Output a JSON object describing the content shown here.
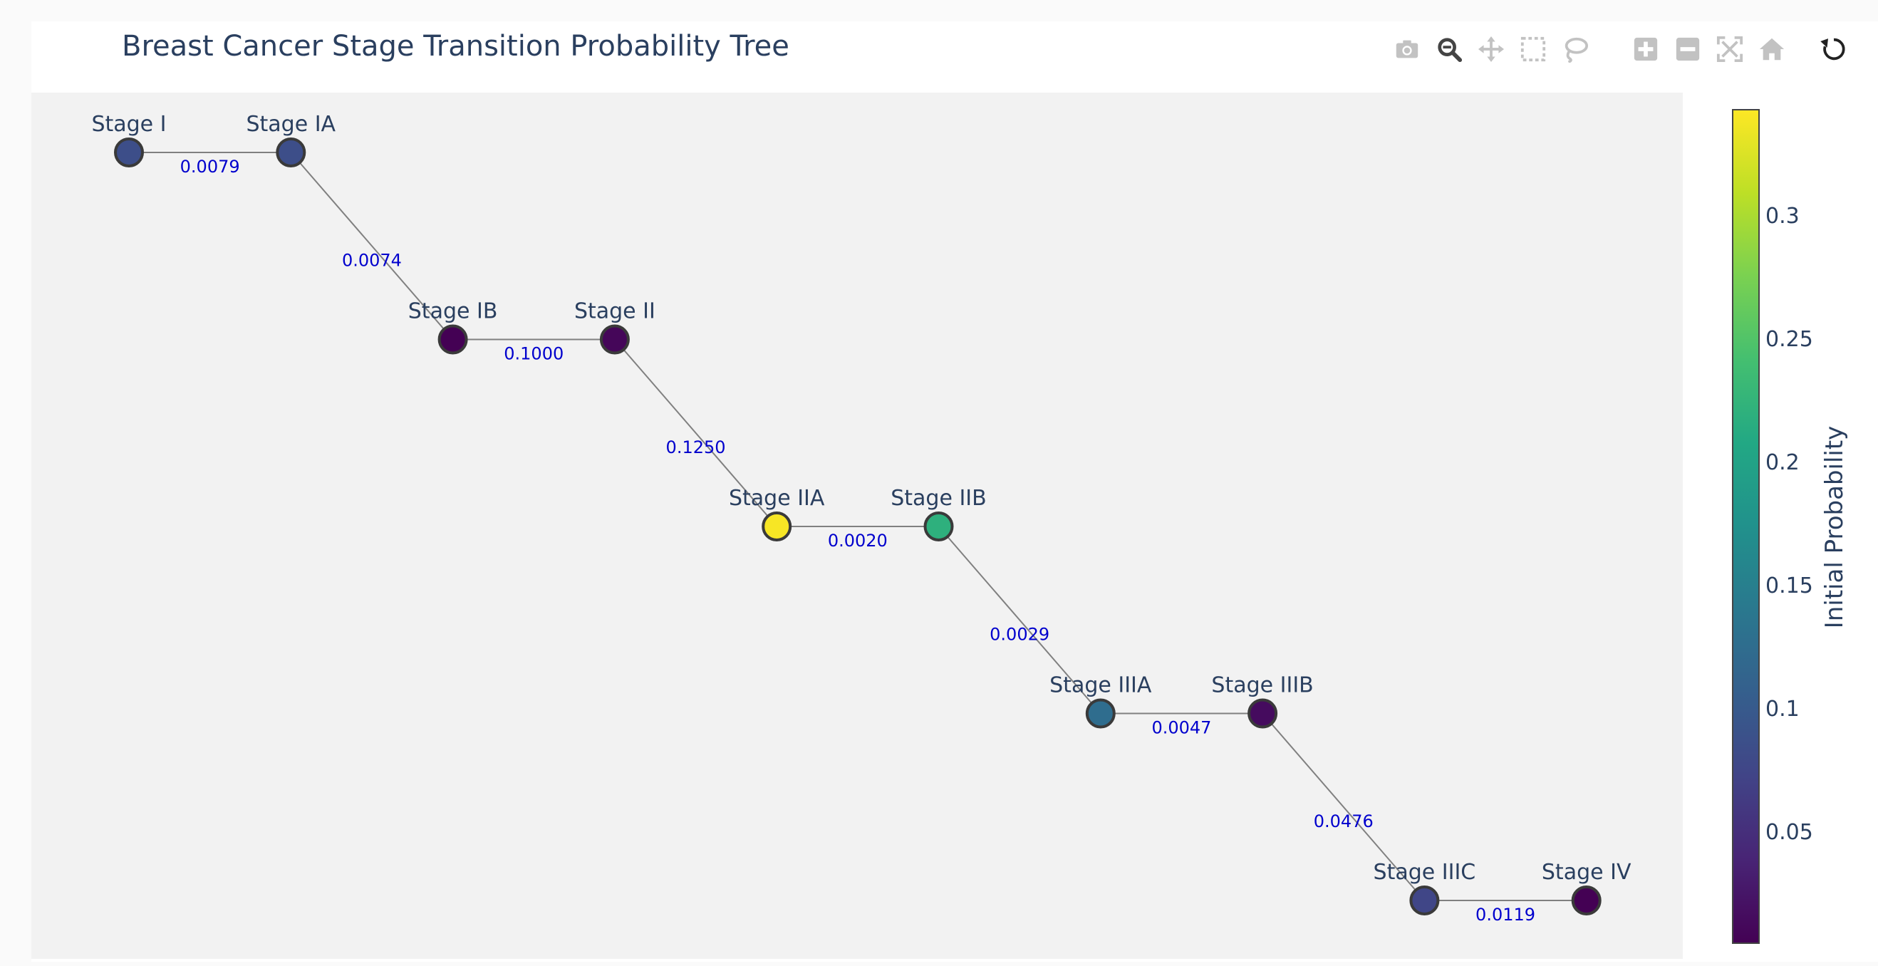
{
  "title": "Breast Cancer Stage Transition Probability Tree",
  "modebar": [
    {
      "name": "camera-icon",
      "label": "Download plot as a png"
    },
    {
      "name": "zoom-icon",
      "label": "Zoom"
    },
    {
      "name": "pan-icon",
      "label": "Pan"
    },
    {
      "name": "box-select-icon",
      "label": "Box Select"
    },
    {
      "name": "lasso-select-icon",
      "label": "Lasso Select"
    },
    {
      "name": "zoom-in-icon",
      "label": "Zoom in"
    },
    {
      "name": "zoom-out-icon",
      "label": "Zoom out"
    },
    {
      "name": "autoscale-icon",
      "label": "Autoscale"
    },
    {
      "name": "reset-axes-icon",
      "label": "Reset axes"
    },
    {
      "name": "reset-view-icon",
      "label": "Reset view"
    }
  ],
  "colors": {
    "plot_bg": "#f2f2f2",
    "edge_line": "#808080",
    "edge_label": "#0000cd",
    "node_outline": "#3a3a3a",
    "text": "#2a3f5f"
  },
  "chart_data": {
    "type": "network",
    "nodes": [
      {
        "name": "Stage I",
        "x": 0,
        "y": 0,
        "initial_probability": 0.085
      },
      {
        "name": "Stage IA",
        "x": 1,
        "y": 0,
        "initial_probability": 0.085
      },
      {
        "name": "Stage IB",
        "x": 2,
        "y": -1,
        "initial_probability": 0.005
      },
      {
        "name": "Stage II",
        "x": 3,
        "y": -1,
        "initial_probability": 0.01
      },
      {
        "name": "Stage IIA",
        "x": 4,
        "y": -2,
        "initial_probability": 0.34
      },
      {
        "name": "Stage IIB",
        "x": 5,
        "y": -2,
        "initial_probability": 0.22
      },
      {
        "name": "Stage IIIA",
        "x": 6,
        "y": -3,
        "initial_probability": 0.125
      },
      {
        "name": "Stage IIIB",
        "x": 7,
        "y": -3,
        "initial_probability": 0.015
      },
      {
        "name": "Stage IIIC",
        "x": 8,
        "y": -4,
        "initial_probability": 0.075
      },
      {
        "name": "Stage IV",
        "x": 9,
        "y": -4,
        "initial_probability": 0.005
      }
    ],
    "edges": [
      {
        "source": "Stage I",
        "target": "Stage IA",
        "label": "0.0079"
      },
      {
        "source": "Stage IA",
        "target": "Stage IB",
        "label": "0.0074"
      },
      {
        "source": "Stage IB",
        "target": "Stage II",
        "label": "0.1000"
      },
      {
        "source": "Stage II",
        "target": "Stage IIA",
        "label": "0.1250"
      },
      {
        "source": "Stage IIA",
        "target": "Stage IIB",
        "label": "0.0020"
      },
      {
        "source": "Stage IIB",
        "target": "Stage IIIA",
        "label": "0.0029"
      },
      {
        "source": "Stage IIIA",
        "target": "Stage IIIB",
        "label": "0.0047"
      },
      {
        "source": "Stage IIIB",
        "target": "Stage IIIC",
        "label": "0.0476"
      },
      {
        "source": "Stage IIIC",
        "target": "Stage IV",
        "label": "0.0119"
      }
    ],
    "colorbar": {
      "title": "Initial Probability",
      "colorscale": "Viridis",
      "range": [
        0.005,
        0.343
      ],
      "ticks": [
        0.05,
        0.1,
        0.15,
        0.2,
        0.25,
        0.3
      ],
      "tick_labels": [
        "0.05",
        "0.1",
        "0.15",
        "0.2",
        "0.25",
        "0.3"
      ]
    }
  }
}
